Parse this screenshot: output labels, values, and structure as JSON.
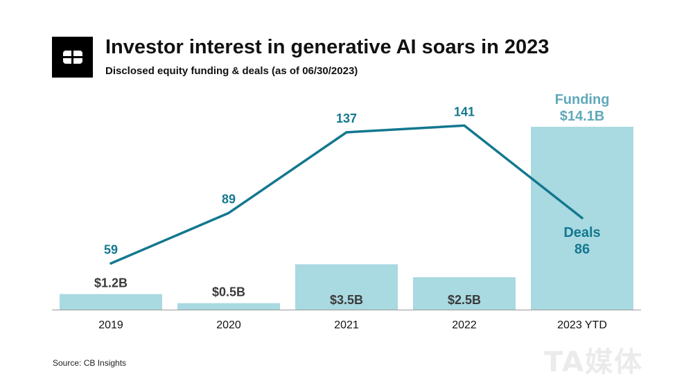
{
  "header": {
    "title": "Investor interest in generative AI soars in 2023",
    "subtitle": "Disclosed equity funding & deals (as of 06/30/2023)"
  },
  "footer": {
    "source": "Source: CB Insights"
  },
  "watermark": "TA媒体",
  "chart_data": {
    "type": "bar",
    "categories": [
      "2019",
      "2020",
      "2021",
      "2022",
      "2023 YTD"
    ],
    "series": [
      {
        "name": "Funding",
        "kind": "bar",
        "unit": "$B",
        "values": [
          1.2,
          0.5,
          3.5,
          2.5,
          14.1
        ],
        "labels": [
          "$1.2B",
          "$0.5B",
          "$3.5B",
          "$2.5B",
          "$14.1B"
        ],
        "color": "#a9d9e1"
      },
      {
        "name": "Deals",
        "kind": "line",
        "values": [
          59,
          89,
          137,
          141,
          86
        ],
        "labels": [
          "59",
          "89",
          "137",
          "141",
          "86"
        ],
        "color": "#13788f"
      }
    ],
    "legend": {
      "funding": "Funding",
      "deals": "Deals"
    },
    "legend_placement": "at last category",
    "title": "Investor interest in generative AI soars in 2023",
    "subtitle": "Disclosed equity funding & deals (as of 06/30/2023)",
    "xlabel": "",
    "ylabel": "",
    "grid": false
  }
}
